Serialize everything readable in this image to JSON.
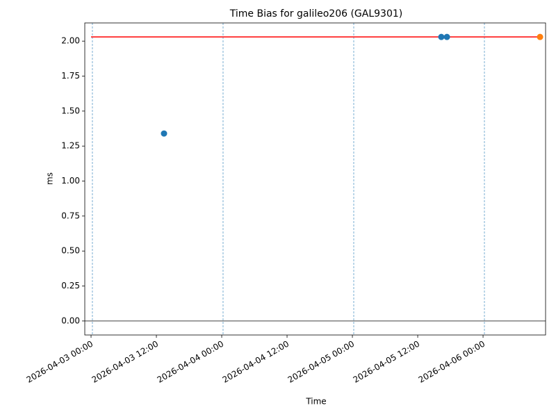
{
  "chart_data": {
    "type": "scatter",
    "title": "Time Bias for galileo206 (GAL9301)",
    "x_label": "Time",
    "y_label": "ms",
    "series": [
      {
        "color": "#1f77b4",
        "x": [
          "2026-04-03 13:24",
          "2026-04-05 16:20",
          "2026-04-05 17:22"
        ],
        "values": [
          1.34,
          2.03,
          2.03
        ]
      },
      {
        "color": "#ff7f0e",
        "x": [
          "2026-04-06 10:28"
        ],
        "values": [
          2.03
        ]
      }
    ],
    "hlines": [
      {
        "y": 2.03,
        "xmin": "2026-04-03 00:00",
        "xmax": "2026-04-06 10:28",
        "color": "red"
      },
      {
        "y": 0,
        "color": "black"
      }
    ],
    "vlines": {
      "x": [
        "2026-04-03 00:15",
        "2026-04-04 00:15",
        "2026-04-05 00:15",
        "2026-04-06 00:15"
      ],
      "color": "#1f77b4"
    },
    "xlim": [
      "2026-04-02 22:51",
      "2026-04-06 11:29"
    ],
    "xticks": [
      "2026-04-03 00:00",
      "2026-04-03 12:00",
      "2026-04-04 00:00",
      "2026-04-04 12:00",
      "2026-04-05 00:00",
      "2026-04-05 12:00",
      "2026-04-06 00:00"
    ],
    "ylim": [
      -0.1,
      2.13
    ],
    "yticks": [
      {
        "value": 0,
        "label": "0.00"
      },
      {
        "value": 0.25,
        "label": "0.25"
      },
      {
        "value": 0.5,
        "label": "0.50"
      },
      {
        "value": 0.75,
        "label": "0.75"
      },
      {
        "value": 1,
        "label": "1.00"
      },
      {
        "value": 1.25,
        "label": "1.25"
      },
      {
        "value": 1.5,
        "label": "1.50"
      },
      {
        "value": 1.75,
        "label": "1.75"
      },
      {
        "value": 2,
        "label": "2.00"
      }
    ]
  }
}
